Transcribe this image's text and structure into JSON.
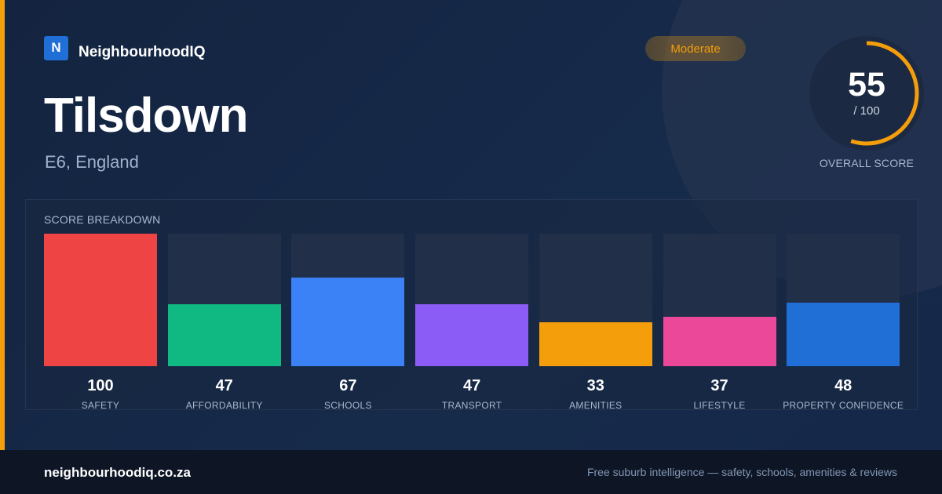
{
  "brand": {
    "logo_letter": "N",
    "name": "NeighbourhoodIQ"
  },
  "title": "Tilsdown",
  "subtitle": "E6, England",
  "badge": {
    "label": "Moderate",
    "color": "#f59e0b"
  },
  "overall": {
    "value": "55",
    "max_label": "/ 100",
    "label": "OVERALL SCORE",
    "score": 55,
    "max": 100,
    "color": "#f59e0b"
  },
  "breakdown": {
    "title": "SCORE BREAKDOWN",
    "items": [
      {
        "label": "SAFETY",
        "value": "100",
        "score": 100,
        "color": "#ef4444"
      },
      {
        "label": "AFFORDABILITY",
        "value": "47",
        "score": 47,
        "color": "#10b981"
      },
      {
        "label": "SCHOOLS",
        "value": "67",
        "score": 67,
        "color": "#3b82f6"
      },
      {
        "label": "TRANSPORT",
        "value": "47",
        "score": 47,
        "color": "#8b5cf6"
      },
      {
        "label": "AMENITIES",
        "value": "33",
        "score": 33,
        "color": "#f59e0b"
      },
      {
        "label": "LIFESTYLE",
        "value": "37",
        "score": 37,
        "color": "#ec4899"
      },
      {
        "label": "PROPERTY CONFIDENCE",
        "value": "48",
        "score": 48,
        "color": "#1f6fd6"
      }
    ]
  },
  "footer": {
    "url": "neighbourhoodiq.co.za",
    "tagline": "Free suburb intelligence — safety, schools, amenities & reviews"
  }
}
